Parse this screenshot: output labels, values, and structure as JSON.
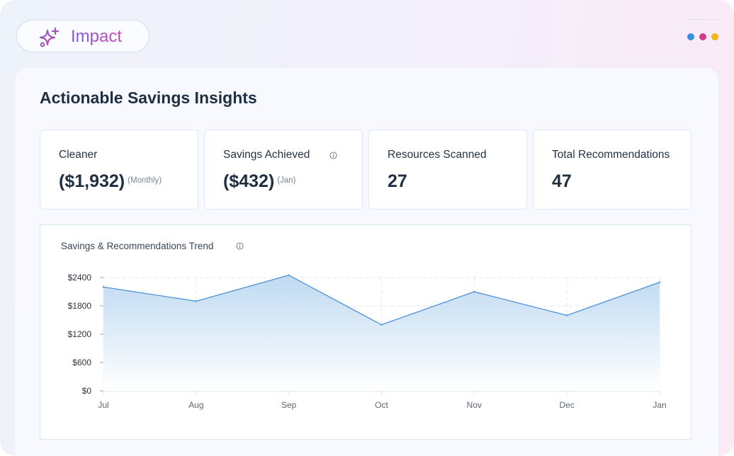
{
  "badge": {
    "label": "Impact",
    "icon": "sparkle-icon"
  },
  "window_dots": [
    "#3b8fe0",
    "#d23a8e",
    "#f4b41a"
  ],
  "page": {
    "title": "Actionable Savings Insights"
  },
  "stats": [
    {
      "label": "Cleaner",
      "value": "($1,932)",
      "sub": "(Monthly)"
    },
    {
      "label": "Savings Achieved",
      "value": "($432)",
      "sub": "(Jan)",
      "info": true
    },
    {
      "label": "Resources Scanned",
      "value": "27",
      "sub": ""
    },
    {
      "label": "Total Recommendations",
      "value": "47",
      "sub": ""
    }
  ],
  "chart": {
    "title": "Savings & Recommendations Trend"
  },
  "chart_data": {
    "type": "area",
    "title": "Savings & Recommendations Trend",
    "categories": [
      "Jul",
      "Aug",
      "Sep",
      "Oct",
      "Nov",
      "Dec",
      "Jan"
    ],
    "values": [
      2200,
      1900,
      2450,
      1400,
      2100,
      1600,
      2300
    ],
    "ylim": [
      0,
      2400
    ],
    "yticks": [
      0,
      600,
      1200,
      1800,
      2400
    ],
    "ytick_labels": [
      "$0",
      "$600",
      "$1200",
      "$1800",
      "$2400"
    ],
    "grid": true,
    "line_color": "#4b92d6"
  }
}
